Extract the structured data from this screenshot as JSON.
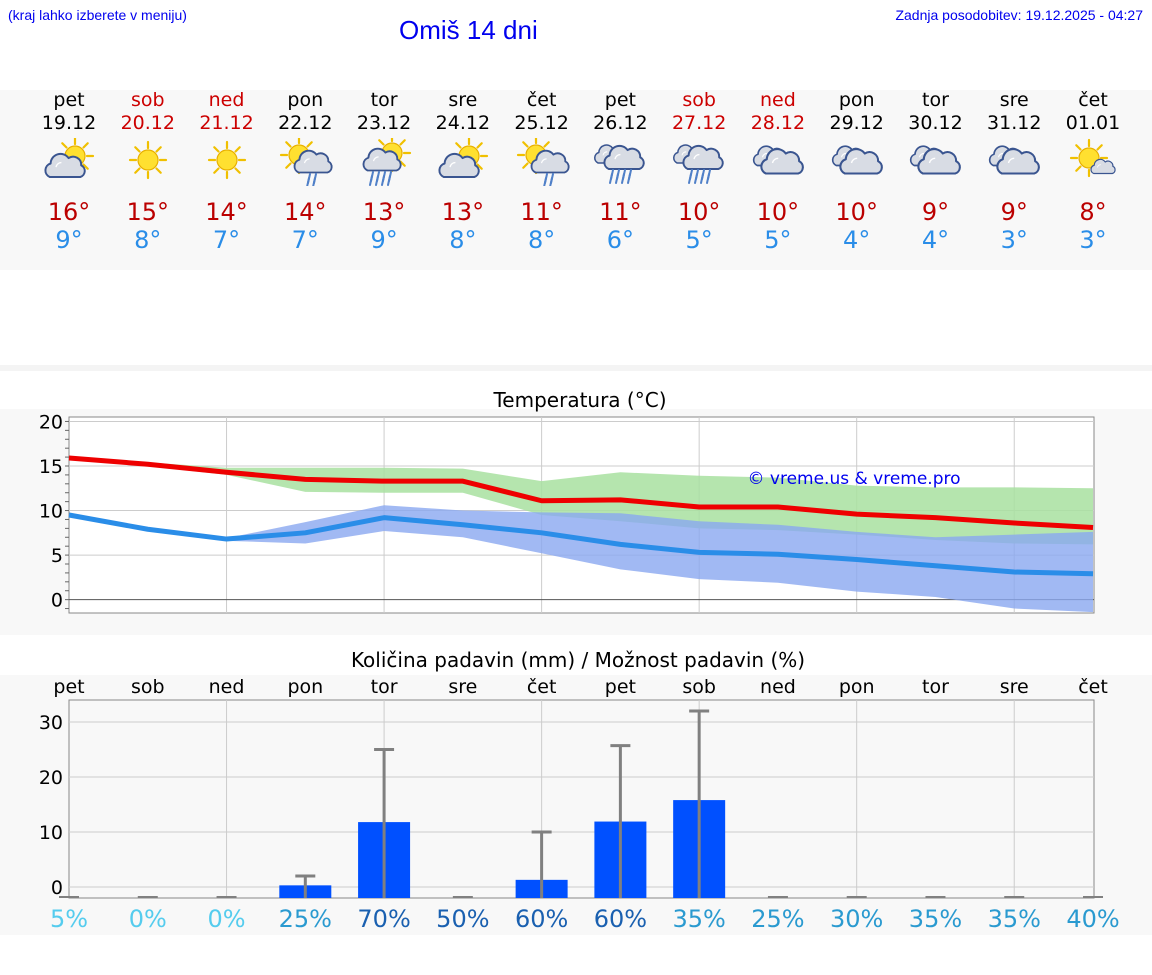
{
  "header": {
    "region_hint": "(kraj lahko izberete v meniju)",
    "title": "Omiš 14 dni",
    "updated": "Zadnja posodobitev: 19.12.2025 - 04:27"
  },
  "days": [
    {
      "name": "pet",
      "date": "19.12",
      "icon": "sun-cloud-icon",
      "tmax": "16°",
      "tmin": "9°",
      "weekend": false
    },
    {
      "name": "sob",
      "date": "20.12",
      "icon": "sun-icon",
      "tmax": "15°",
      "tmin": "8°",
      "weekend": true
    },
    {
      "name": "ned",
      "date": "21.12",
      "icon": "sun-icon",
      "tmax": "14°",
      "tmin": "7°",
      "weekend": true
    },
    {
      "name": "pon",
      "date": "22.12",
      "icon": "sun-cloud-light-rain-icon",
      "tmax": "14°",
      "tmin": "7°",
      "weekend": false
    },
    {
      "name": "tor",
      "date": "23.12",
      "icon": "sun-cloud-rain-icon",
      "tmax": "13°",
      "tmin": "9°",
      "weekend": false
    },
    {
      "name": "sre",
      "date": "24.12",
      "icon": "sun-cloud-icon",
      "tmax": "13°",
      "tmin": "8°",
      "weekend": false
    },
    {
      "name": "čet",
      "date": "25.12",
      "icon": "sun-cloud-light-rain-icon",
      "tmax": "11°",
      "tmin": "8°",
      "weekend": false
    },
    {
      "name": "pet",
      "date": "26.12",
      "icon": "cloud-rain-icon",
      "tmax": "11°",
      "tmin": "6°",
      "weekend": false
    },
    {
      "name": "sob",
      "date": "27.12",
      "icon": "cloud-rain-icon",
      "tmax": "10°",
      "tmin": "5°",
      "weekend": true
    },
    {
      "name": "ned",
      "date": "28.12",
      "icon": "cloud-icon",
      "tmax": "10°",
      "tmin": "5°",
      "weekend": true
    },
    {
      "name": "pon",
      "date": "29.12",
      "icon": "cloud-icon",
      "tmax": "10°",
      "tmin": "4°",
      "weekend": false
    },
    {
      "name": "tor",
      "date": "30.12",
      "icon": "cloud-icon",
      "tmax": "9°",
      "tmin": "4°",
      "weekend": false
    },
    {
      "name": "sre",
      "date": "31.12",
      "icon": "cloud-icon",
      "tmax": "9°",
      "tmin": "3°",
      "weekend": false
    },
    {
      "name": "čet",
      "date": "01.01",
      "icon": "sun-small-cloud-icon",
      "tmax": "8°",
      "tmin": "3°",
      "weekend": false
    }
  ],
  "colors": {
    "max_line": "#ee0000",
    "min_line": "#2a8de8",
    "max_band": "#a8e0a0",
    "min_band": "#a8c0f0",
    "overlap_band": "#80c8b0",
    "bar": "#0050ff",
    "error_bar": "#808080",
    "weekend_text": "#cc0000",
    "link": "#0000ee"
  },
  "chart_data": [
    {
      "type": "line",
      "title": "Temperatura (°C)",
      "watermark": "© vreme.us & vreme.pro",
      "x": [
        0,
        1,
        2,
        3,
        4,
        5,
        6,
        7,
        8,
        9,
        10,
        11,
        12,
        13
      ],
      "ylim": [
        -1.5,
        20.5
      ],
      "yticks": [
        0,
        5,
        10,
        15,
        20
      ],
      "series": [
        {
          "name": "max",
          "values": [
            15.9,
            15.2,
            14.3,
            13.5,
            13.3,
            13.3,
            11.1,
            11.2,
            10.4,
            10.4,
            9.6,
            9.2,
            8.6,
            8.1
          ]
        },
        {
          "name": "min",
          "values": [
            9.5,
            7.9,
            6.8,
            7.5,
            9.2,
            8.4,
            7.5,
            6.2,
            5.3,
            5.1,
            4.5,
            3.8,
            3.1,
            2.9
          ]
        }
      ],
      "bands": [
        {
          "name": "max_range",
          "low": [
            15.8,
            15.0,
            14.0,
            12.1,
            12.0,
            12.0,
            9.5,
            8.8,
            8.0,
            7.8,
            7.3,
            6.7,
            6.3,
            6.2
          ],
          "high": [
            16.0,
            15.4,
            14.8,
            14.8,
            14.8,
            14.7,
            13.3,
            14.3,
            13.9,
            13.7,
            12.8,
            12.6,
            12.6,
            12.5
          ]
        },
        {
          "name": "min_range",
          "low": [
            9.5,
            7.9,
            6.6,
            6.3,
            7.7,
            7.0,
            5.2,
            3.4,
            2.3,
            1.9,
            0.9,
            0.3,
            -1.0,
            -1.4
          ],
          "high": [
            9.6,
            8.0,
            6.9,
            8.7,
            10.6,
            10.0,
            9.8,
            9.7,
            8.8,
            8.4,
            7.6,
            7.0,
            7.3,
            7.6
          ]
        }
      ]
    },
    {
      "type": "bar",
      "title": "Količina padavin (mm) / Možnost padavin (%)",
      "categories": [
        "pet",
        "sob",
        "ned",
        "pon",
        "tor",
        "sre",
        "čet",
        "pet",
        "sob",
        "ned",
        "pon",
        "tor",
        "sre",
        "čet"
      ],
      "values": [
        0,
        0,
        0,
        0.3,
        11.8,
        0,
        1.3,
        11.9,
        15.8,
        0,
        0,
        0,
        0,
        0
      ],
      "error_max": [
        0,
        0,
        0,
        2,
        25,
        0,
        10,
        25.7,
        32,
        0,
        0,
        0,
        0,
        0
      ],
      "ylim": [
        -2,
        34
      ],
      "yticks": [
        0,
        10,
        20,
        30
      ],
      "probability": [
        "5%",
        "0%",
        "0%",
        "25%",
        "70%",
        "50%",
        "60%",
        "60%",
        "35%",
        "25%",
        "30%",
        "35%",
        "35%",
        "40%"
      ],
      "probability_colors": [
        "#55ccee",
        "#55ccee",
        "#55ccee",
        "#2a9ad0",
        "#1a60b0",
        "#1a60b0",
        "#1a60b0",
        "#1a60b0",
        "#2a9ad0",
        "#2a9ad0",
        "#2a9ad0",
        "#2a9ad0",
        "#2a9ad0",
        "#2a9ad0"
      ]
    }
  ]
}
